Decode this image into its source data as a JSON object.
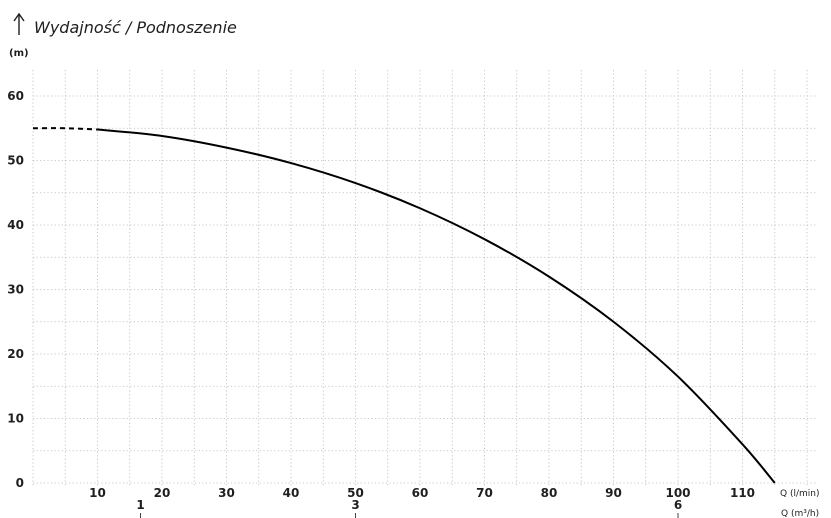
{
  "chart_data": {
    "type": "line",
    "title": "Wydajność / Podnoszenie",
    "ylabel": "(m)",
    "xlabel": "Q (l/min)",
    "x2label": "Q (m³/h)",
    "ylim": [
      0,
      60
    ],
    "xlim": [
      0,
      120
    ],
    "y_ticks": [
      0,
      10,
      20,
      30,
      40,
      50,
      60
    ],
    "x_ticks": [
      10,
      20,
      30,
      40,
      50,
      60,
      70,
      80,
      90,
      100,
      110
    ],
    "x2_ticks": [
      {
        "value": 1,
        "label": "1"
      },
      {
        "value": 3,
        "label": "3"
      },
      {
        "value": 6,
        "label": "6"
      }
    ],
    "grid": true,
    "series": [
      {
        "line_style": "dashed",
        "x": [
          0,
          5,
          10
        ],
        "y": [
          55.0,
          55.0,
          54.8
        ]
      },
      {
        "line_style": "solid",
        "x": [
          10,
          20,
          30,
          40,
          50,
          60,
          70,
          80,
          90,
          100,
          110,
          115
        ],
        "y": [
          54.8,
          53.8,
          52.0,
          49.6,
          46.5,
          42.6,
          37.8,
          32.0,
          25.0,
          16.5,
          6.0,
          0
        ]
      }
    ]
  }
}
